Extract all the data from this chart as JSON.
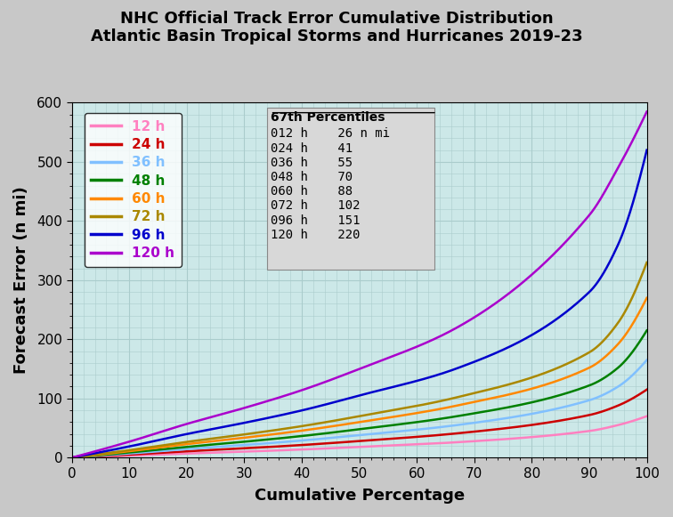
{
  "title_line1": "NHC Official Track Error Cumulative Distribution",
  "title_line2": "Atlantic Basin Tropical Storms and Hurricanes 2019-23",
  "xlabel": "Cumulative Percentage",
  "ylabel": "Forecast Error (n mi)",
  "xlim": [
    0,
    100
  ],
  "ylim": [
    0,
    600
  ],
  "xticks": [
    0,
    10,
    20,
    30,
    40,
    50,
    60,
    70,
    80,
    90,
    100
  ],
  "yticks": [
    0,
    100,
    200,
    300,
    400,
    500,
    600
  ],
  "background_color": "#cce8e8",
  "fig_facecolor": "#c8c8c8",
  "grid_color": "#aacccc",
  "series": [
    {
      "label": "12 h",
      "color": "#ff80c0",
      "p50": 18,
      "p67": 26,
      "p90": 45,
      "p95": 55,
      "pmax": 70
    },
    {
      "label": "24 h",
      "color": "#cc0000",
      "p50": 28,
      "p67": 41,
      "p90": 72,
      "p95": 88,
      "pmax": 115
    },
    {
      "label": "36 h",
      "color": "#80c0ff",
      "p50": 38,
      "p67": 55,
      "p90": 97,
      "p95": 120,
      "pmax": 165
    },
    {
      "label": "48 h",
      "color": "#008000",
      "p50": 48,
      "p67": 70,
      "p90": 122,
      "p95": 152,
      "pmax": 215
    },
    {
      "label": "60 h",
      "color": "#ff8800",
      "p50": 60,
      "p67": 88,
      "p90": 152,
      "p95": 192,
      "pmax": 270
    },
    {
      "label": "72 h",
      "color": "#aa8800",
      "p50": 70,
      "p67": 102,
      "p90": 178,
      "p95": 228,
      "pmax": 330
    },
    {
      "label": "96 h",
      "color": "#0000cc",
      "p50": 105,
      "p67": 151,
      "p90": 280,
      "p95": 360,
      "pmax": 520
    },
    {
      "label": "120 h",
      "color": "#aa00cc",
      "p50": 150,
      "p67": 220,
      "p90": 410,
      "p95": 490,
      "pmax": 585
    }
  ],
  "percentiles_text": "67th Percentiles",
  "percentiles_data": [
    [
      "012 h",
      "26 n mi"
    ],
    [
      "024 h",
      "41"
    ],
    [
      "036 h",
      "55"
    ],
    [
      "048 h",
      "70"
    ],
    [
      "060 h",
      "88"
    ],
    [
      "072 h",
      "102"
    ],
    [
      "096 h",
      "151"
    ],
    [
      "120 h",
      "220"
    ]
  ],
  "linewidth": 1.8,
  "figsize": [
    7.56,
    5.81
  ],
  "dpi": 100
}
